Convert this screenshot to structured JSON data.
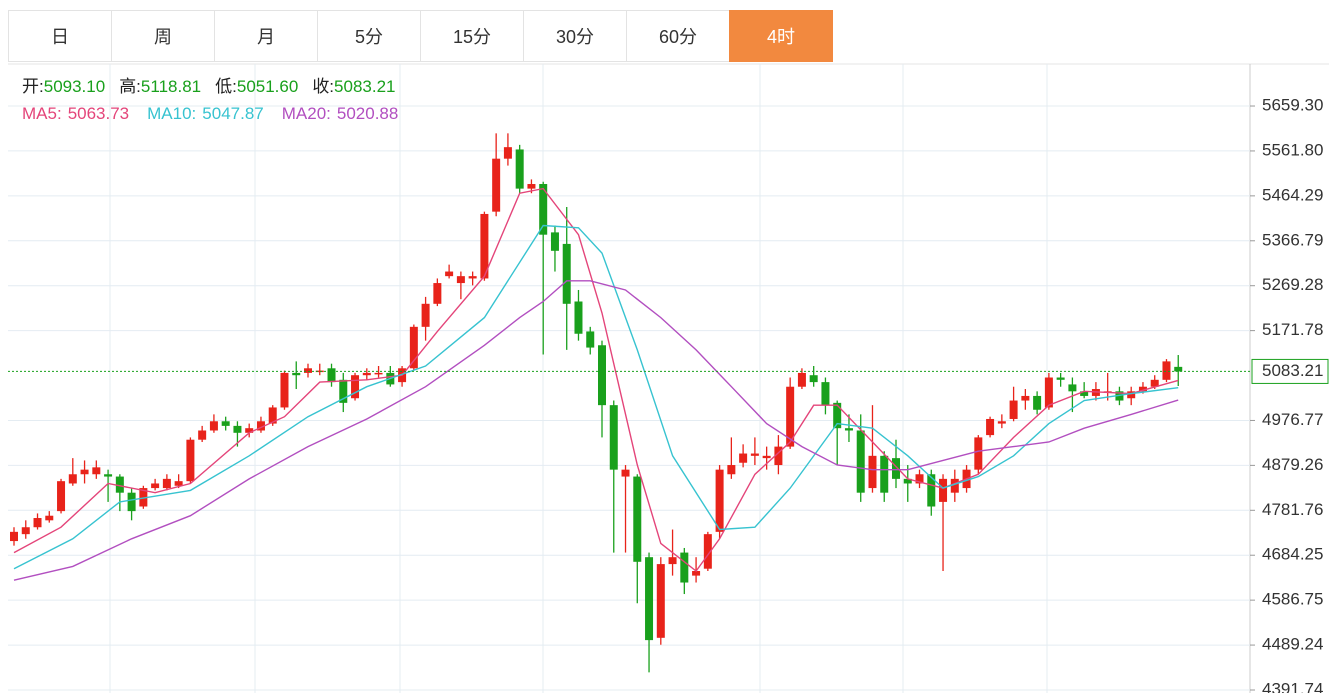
{
  "tabs": [
    "日",
    "周",
    "月",
    "5分",
    "15分",
    "30分",
    "60分",
    "4时"
  ],
  "active_tab": 7,
  "chart_data": {
    "type": "candlestick",
    "info_labels": [
      "开:",
      "高:",
      "低:",
      "收:"
    ],
    "info_values": [
      "5093.10",
      "5118.81",
      "5051.60",
      "5083.21"
    ],
    "up_color": "#e8231a",
    "down_color": "#19a01c",
    "open": [
      4715,
      4730,
      4745,
      4760,
      4780,
      4840,
      4860,
      4860,
      4860,
      4855,
      4820,
      4790,
      4830,
      4830,
      4835,
      4845,
      4935,
      4955,
      4975,
      4965,
      4950,
      4955,
      4970,
      5005,
      5080,
      5080,
      5085,
      5090,
      5065,
      5025,
      5075,
      5080,
      5080,
      5060,
      5090,
      5180,
      5230,
      5290,
      5275,
      5285,
      5285,
      5430,
      5545,
      5565,
      5480,
      5490,
      5385,
      5360,
      5235,
      5170,
      5140,
      5010,
      4855,
      4855,
      4680,
      4505,
      4665,
      4690,
      4640,
      4655,
      4735,
      4860,
      4885,
      4900,
      4895,
      4880,
      4920,
      5050,
      5075,
      5060,
      5015,
      4960,
      4955,
      4830,
      4900,
      4895,
      4850,
      4840,
      4860,
      4800,
      4820,
      4830,
      4870,
      4945,
      4970,
      4980,
      5020,
      5030,
      5005,
      5070,
      5055,
      5040,
      5030,
      5040,
      5040,
      5025,
      5040,
      5050,
      5065,
      5093.1
    ],
    "high": [
      4745,
      4760,
      4775,
      4780,
      4850,
      4895,
      4890,
      4890,
      4870,
      4860,
      4830,
      4835,
      4850,
      4860,
      4860,
      4940,
      4965,
      4990,
      4985,
      4975,
      4970,
      4985,
      5010,
      5085,
      5105,
      5100,
      5100,
      5100,
      5080,
      5080,
      5090,
      5095,
      5095,
      5095,
      5185,
      5245,
      5285,
      5315,
      5300,
      5300,
      5430,
      5600,
      5600,
      5575,
      5500,
      5495,
      5400,
      5440,
      5260,
      5180,
      5150,
      5020,
      4880,
      4860,
      4690,
      4680,
      4740,
      4700,
      4680,
      4735,
      4880,
      4940,
      4925,
      4940,
      4920,
      4945,
      5070,
      5090,
      5095,
      5070,
      5020,
      4990,
      4990,
      5010,
      4910,
      4935,
      4880,
      4870,
      4870,
      4860,
      4870,
      4880,
      4945,
      4985,
      4990,
      5050,
      5045,
      5040,
      5080,
      5080,
      5070,
      5060,
      5060,
      5080,
      5050,
      5050,
      5060,
      5075,
      5110,
      5118.81
    ],
    "low": [
      4705,
      4720,
      4740,
      4755,
      4775,
      4835,
      4840,
      4850,
      4800,
      4780,
      4760,
      4785,
      4825,
      4825,
      4830,
      4840,
      4930,
      4950,
      4955,
      4920,
      4940,
      4950,
      4965,
      5000,
      5045,
      5070,
      5075,
      5050,
      4995,
      5020,
      5065,
      5070,
      5050,
      5050,
      5085,
      5150,
      5225,
      5285,
      5240,
      5270,
      5280,
      5420,
      5530,
      5470,
      5470,
      5120,
      5300,
      5130,
      5150,
      5120,
      4940,
      4690,
      4690,
      4580,
      4430,
      4490,
      4640,
      4600,
      4625,
      4650,
      4720,
      4850,
      4875,
      4880,
      4870,
      4860,
      4915,
      5045,
      5050,
      4990,
      4880,
      4930,
      4800,
      4820,
      4800,
      4830,
      4800,
      4830,
      4770,
      4650,
      4800,
      4820,
      4860,
      4940,
      4960,
      4975,
      5000,
      4990,
      5000,
      5050,
      4995,
      5025,
      5020,
      5020,
      5010,
      5010,
      5035,
      5045,
      5060,
      5051.6
    ],
    "close": [
      4735,
      4745,
      4765,
      4770,
      4845,
      4860,
      4870,
      4875,
      4855,
      4820,
      4780,
      4830,
      4840,
      4850,
      4845,
      4935,
      4955,
      4975,
      4965,
      4950,
      4960,
      4975,
      5005,
      5080,
      5075,
      5090,
      5085,
      5060,
      5015,
      5075,
      5080,
      5080,
      5055,
      5090,
      5180,
      5230,
      5275,
      5300,
      5290,
      5290,
      5425,
      5545,
      5570,
      5480,
      5490,
      5380,
      5345,
      5230,
      5165,
      5135,
      5010,
      4870,
      4870,
      4670,
      4500,
      4665,
      4680,
      4625,
      4650,
      4730,
      4870,
      4880,
      4905,
      4905,
      4900,
      4920,
      5050,
      5080,
      5060,
      5010,
      4960,
      4955,
      4820,
      4900,
      4820,
      4850,
      4840,
      4860,
      4790,
      4850,
      4850,
      4870,
      4940,
      4980,
      4975,
      5020,
      5030,
      5000,
      5070,
      5065,
      5040,
      5030,
      5045,
      5040,
      5020,
      5040,
      5050,
      5065,
      5105,
      5083.21
    ],
    "series": [
      {
        "name": "MA5:",
        "value_label": "5063.73",
        "color": "#e4457a",
        "x": [
          0,
          4,
          8,
          12,
          15,
          20,
          23,
          26,
          30,
          33,
          36,
          40,
          43,
          45,
          48,
          50,
          53,
          55,
          58,
          60,
          63,
          66,
          68,
          70,
          73,
          76,
          79,
          82,
          85,
          88,
          91,
          95,
          99
        ],
        "values": [
          4690,
          4745,
          4840,
          4820,
          4840,
          4950,
          4985,
          5060,
          5065,
          5075,
          5170,
          5290,
          5470,
          5480,
          5380,
          5210,
          4880,
          4710,
          4650,
          4720,
          4860,
          4930,
          5010,
          5010,
          4930,
          4850,
          4830,
          4860,
          4940,
          5010,
          5040,
          5035,
          5063.73
        ]
      },
      {
        "name": "MA10:",
        "value_label": "5047.87",
        "color": "#37c3d0",
        "x": [
          0,
          5,
          9,
          15,
          20,
          25,
          30,
          35,
          40,
          45,
          48,
          50,
          53,
          56,
          60,
          63,
          66,
          70,
          73,
          76,
          79,
          82,
          85,
          88,
          91,
          95,
          99
        ],
        "values": [
          4655,
          4720,
          4800,
          4825,
          4900,
          4985,
          5050,
          5095,
          5200,
          5400,
          5395,
          5340,
          5130,
          4900,
          4740,
          4745,
          4830,
          4970,
          4960,
          4900,
          4830,
          4855,
          4900,
          4970,
          5020,
          5035,
          5047.87
        ]
      },
      {
        "name": "MA20:",
        "value_label": "5020.88",
        "color": "#b24fc0",
        "x": [
          0,
          5,
          10,
          15,
          20,
          25,
          30,
          35,
          40,
          43,
          45,
          47,
          49,
          52,
          55,
          58,
          61,
          64,
          67,
          70,
          73,
          76,
          79,
          82,
          85,
          88,
          91,
          95,
          99
        ],
        "values": [
          4630,
          4660,
          4720,
          4770,
          4850,
          4920,
          4980,
          5050,
          5140,
          5200,
          5235,
          5280,
          5280,
          5260,
          5200,
          5130,
          5050,
          4970,
          4920,
          4880,
          4870,
          4870,
          4890,
          4910,
          4920,
          4930,
          4960,
          4990,
          5020.88
        ]
      }
    ],
    "current_price": {
      "value": 5083.21,
      "label": "5083.21"
    },
    "ylim": [
      4385.2,
      5750.5
    ],
    "yticks": [
      {
        "value": 5659.3,
        "label": "5659.30"
      },
      {
        "value": 5561.8,
        "label": "5561.80"
      },
      5464.29,
      5366.79,
      5269.28,
      5171.78,
      4976.77,
      4879.26,
      4781.76,
      4684.25,
      4586.75,
      4489.24,
      4391.74
    ]
  }
}
